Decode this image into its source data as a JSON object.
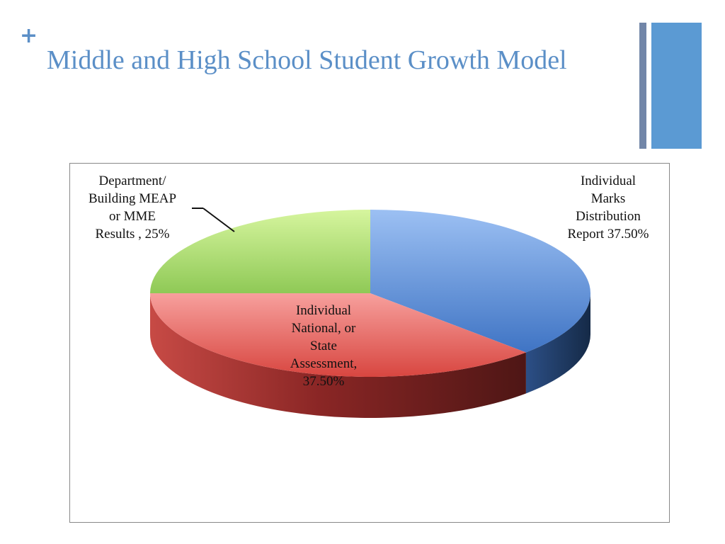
{
  "slide": {
    "plus": "+",
    "title": "Middle and High School Student Growth Model"
  },
  "colors": {
    "title": "#5b8fc7",
    "plus": "#5b8fc7",
    "accent_thin": "#7286a8",
    "accent_wide": "#5b9ad3"
  },
  "chart_data": {
    "type": "pie",
    "style": "3d",
    "slices": [
      {
        "label_lines": [
          "Individual",
          "Marks",
          "Distribution",
          "Report 37.50%"
        ],
        "value": 37.5,
        "top_color": "#6f9fe3",
        "side_color": "#1d3659"
      },
      {
        "label_lines": [
          "Individual",
          "National, or",
          "State",
          "Assessment,",
          "37.50%"
        ],
        "value": 37.5,
        "top_color": "#ea6e6e",
        "side_color": "#8e2727"
      },
      {
        "label_lines": [
          "Department/",
          "Building MEAP",
          "or MME",
          "Results , 25%"
        ],
        "value": 25,
        "top_color": "#b7e38a",
        "side_color": "#6f9a44"
      }
    ]
  }
}
